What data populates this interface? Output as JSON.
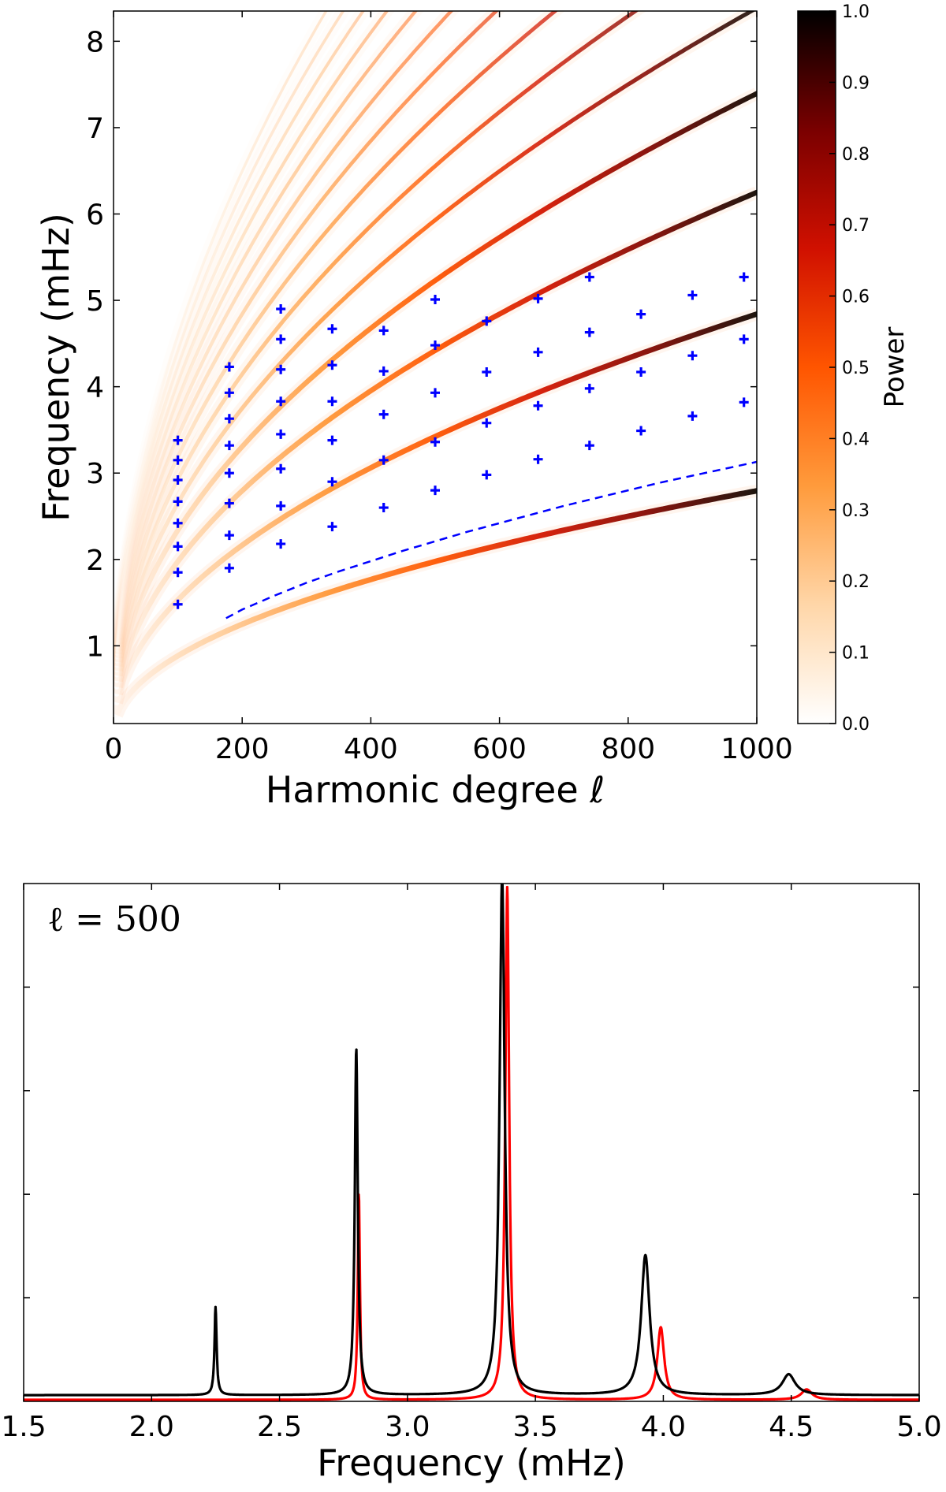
{
  "chart_data": [
    {
      "type": "heatmap",
      "title": "",
      "xlabel": "Harmonic degree ℓ",
      "ylabel": "Frequency (mHz)",
      "xlim": [
        0,
        1000
      ],
      "ylim": [
        0.1,
        8.35
      ],
      "x_ticks": [
        "0",
        "200",
        "400",
        "600",
        "800",
        "1000"
      ],
      "y_ticks": [
        "1",
        "2",
        "3",
        "4",
        "5",
        "6",
        "7",
        "8"
      ],
      "colorbar": {
        "label": "Power",
        "range": [
          0.0,
          1.0
        ],
        "ticks": [
          "0.0",
          "0.1",
          "0.2",
          "0.3",
          "0.4",
          "0.5",
          "0.6",
          "0.7",
          "0.8",
          "0.9",
          "1.0"
        ],
        "colormap": [
          "#ffffff",
          "#ffd6a8",
          "#ff9b3c",
          "#ff5500",
          "#d01000",
          "#7a0000",
          "#000000"
        ]
      },
      "ridges": {
        "count": 14,
        "ell_min": 5,
        "ell_max": 1000,
        "note": "p-mode ridges, frequency approx (n + 0.5)^0.5 * 0.125 * sqrt(ell) mHz"
      },
      "marker_color": "#0000ff",
      "markers": [
        {
          "x": 100,
          "y": 1.48
        },
        {
          "x": 100,
          "y": 1.85
        },
        {
          "x": 100,
          "y": 2.15
        },
        {
          "x": 100,
          "y": 2.42
        },
        {
          "x": 100,
          "y": 2.67
        },
        {
          "x": 100,
          "y": 2.92
        },
        {
          "x": 100,
          "y": 3.15
        },
        {
          "x": 100,
          "y": 3.38
        },
        {
          "x": 180,
          "y": 1.9
        },
        {
          "x": 180,
          "y": 2.28
        },
        {
          "x": 180,
          "y": 2.65
        },
        {
          "x": 180,
          "y": 3.0
        },
        {
          "x": 180,
          "y": 3.32
        },
        {
          "x": 180,
          "y": 3.63
        },
        {
          "x": 180,
          "y": 3.93
        },
        {
          "x": 180,
          "y": 4.23
        },
        {
          "x": 260,
          "y": 2.18
        },
        {
          "x": 260,
          "y": 2.62
        },
        {
          "x": 260,
          "y": 3.05
        },
        {
          "x": 260,
          "y": 3.45
        },
        {
          "x": 260,
          "y": 3.83
        },
        {
          "x": 260,
          "y": 4.2
        },
        {
          "x": 260,
          "y": 4.55
        },
        {
          "x": 260,
          "y": 4.9
        },
        {
          "x": 340,
          "y": 2.38
        },
        {
          "x": 340,
          "y": 2.9
        },
        {
          "x": 340,
          "y": 3.38
        },
        {
          "x": 340,
          "y": 3.83
        },
        {
          "x": 340,
          "y": 4.25
        },
        {
          "x": 340,
          "y": 4.67
        },
        {
          "x": 420,
          "y": 2.6
        },
        {
          "x": 420,
          "y": 3.15
        },
        {
          "x": 420,
          "y": 3.68
        },
        {
          "x": 420,
          "y": 4.18
        },
        {
          "x": 420,
          "y": 4.65
        },
        {
          "x": 500,
          "y": 2.8
        },
        {
          "x": 500,
          "y": 3.36
        },
        {
          "x": 500,
          "y": 3.93
        },
        {
          "x": 500,
          "y": 4.48
        },
        {
          "x": 500,
          "y": 5.01
        },
        {
          "x": 580,
          "y": 2.98
        },
        {
          "x": 580,
          "y": 3.58
        },
        {
          "x": 580,
          "y": 4.17
        },
        {
          "x": 580,
          "y": 4.76
        },
        {
          "x": 660,
          "y": 3.16
        },
        {
          "x": 660,
          "y": 3.78
        },
        {
          "x": 660,
          "y": 4.4
        },
        {
          "x": 660,
          "y": 5.02
        },
        {
          "x": 740,
          "y": 3.32
        },
        {
          "x": 740,
          "y": 3.98
        },
        {
          "x": 740,
          "y": 4.63
        },
        {
          "x": 740,
          "y": 5.27
        },
        {
          "x": 820,
          "y": 3.49
        },
        {
          "x": 820,
          "y": 4.17
        },
        {
          "x": 820,
          "y": 4.84
        },
        {
          "x": 900,
          "y": 3.66
        },
        {
          "x": 900,
          "y": 4.36
        },
        {
          "x": 900,
          "y": 5.06
        },
        {
          "x": 980,
          "y": 3.82
        },
        {
          "x": 980,
          "y": 4.55
        },
        {
          "x": 980,
          "y": 5.27
        }
      ],
      "dashed_line": {
        "color": "#0000ff",
        "points": [
          {
            "x": 175,
            "y": 1.32
          },
          {
            "x": 200,
            "y": 1.42
          },
          {
            "x": 250,
            "y": 1.58
          },
          {
            "x": 300,
            "y": 1.73
          },
          {
            "x": 350,
            "y": 1.86
          },
          {
            "x": 400,
            "y": 1.98
          },
          {
            "x": 450,
            "y": 2.1
          },
          {
            "x": 500,
            "y": 2.21
          },
          {
            "x": 550,
            "y": 2.32
          },
          {
            "x": 600,
            "y": 2.42
          },
          {
            "x": 650,
            "y": 2.52
          },
          {
            "x": 700,
            "y": 2.62
          },
          {
            "x": 750,
            "y": 2.71
          },
          {
            "x": 800,
            "y": 2.8
          },
          {
            "x": 850,
            "y": 2.89
          },
          {
            "x": 900,
            "y": 2.97
          },
          {
            "x": 950,
            "y": 3.05
          },
          {
            "x": 1000,
            "y": 3.13
          }
        ]
      }
    },
    {
      "type": "line",
      "title": "",
      "annotation": "ℓ = 500",
      "xlabel": "Frequency (mHz)",
      "ylabel": "",
      "xlim": [
        1.5,
        5.0
      ],
      "ylim": [
        0,
        1.0
      ],
      "x_ticks": [
        "1.5",
        "2.0",
        "2.5",
        "3.0",
        "3.5",
        "4.0",
        "4.5",
        "5.0"
      ],
      "y_ticks_unlabeled": [
        0.2,
        0.4,
        0.6,
        0.8
      ],
      "series": [
        {
          "name": "black",
          "color": "#000000",
          "baseline": 0.012,
          "peaks": [
            {
              "center": 2.25,
              "height": 0.17,
              "width": 0.005
            },
            {
              "center": 2.8,
              "height": 0.67,
              "width": 0.007
            },
            {
              "center": 3.37,
              "height": 1.0,
              "width": 0.012
            },
            {
              "center": 3.93,
              "height": 0.27,
              "width": 0.02
            },
            {
              "center": 4.49,
              "height": 0.04,
              "width": 0.03
            }
          ]
        },
        {
          "name": "red",
          "color": "#ff0000",
          "baseline": 0.003,
          "peaks": [
            {
              "center": 2.81,
              "height": 0.4,
              "width": 0.005
            },
            {
              "center": 3.39,
              "height": 0.99,
              "width": 0.009
            },
            {
              "center": 3.99,
              "height": 0.14,
              "width": 0.016
            },
            {
              "center": 4.56,
              "height": 0.02,
              "width": 0.025
            }
          ]
        }
      ]
    }
  ]
}
